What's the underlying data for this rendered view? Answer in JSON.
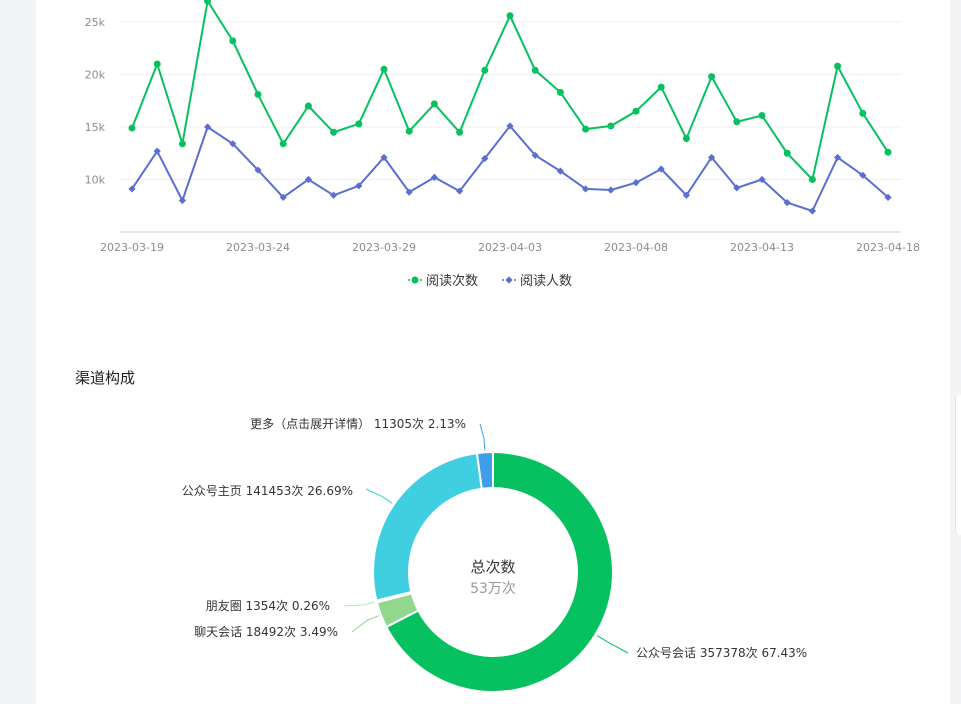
{
  "line_chart": {
    "type": "line",
    "x": [
      "2023-03-19",
      "2023-03-20",
      "2023-03-21",
      "2023-03-22",
      "2023-03-23",
      "2023-03-24",
      "2023-03-25",
      "2023-03-26",
      "2023-03-27",
      "2023-03-28",
      "2023-03-29",
      "2023-03-30",
      "2023-03-31",
      "2023-04-01",
      "2023-04-02",
      "2023-04-03",
      "2023-04-04",
      "2023-04-05",
      "2023-04-06",
      "2023-04-07",
      "2023-04-08",
      "2023-04-09",
      "2023-04-10",
      "2023-04-11",
      "2023-04-12",
      "2023-04-13",
      "2023-04-14",
      "2023-04-15",
      "2023-04-16",
      "2023-04-17",
      "2023-04-18"
    ],
    "x_tick_labels": [
      "2023-03-19",
      "2023-03-24",
      "2023-03-29",
      "2023-04-03",
      "2023-04-08",
      "2023-04-13",
      "2023-04-18"
    ],
    "y_tick_labels": [
      "10k",
      "15k",
      "20k",
      "25k"
    ],
    "y_ticks": [
      10000,
      15000,
      20000,
      25000
    ],
    "series": [
      {
        "name": "阅读次数",
        "color": "#07c160",
        "marker": "circle",
        "values": [
          14900,
          21000,
          13400,
          27000,
          23200,
          18100,
          13400,
          17000,
          14500,
          15300,
          20500,
          14600,
          17200,
          14500,
          20400,
          25600,
          20400,
          18300,
          14800,
          15100,
          16500,
          18800,
          13900,
          19800,
          15500,
          16100,
          12500,
          10000,
          20800,
          16300,
          12600
        ]
      },
      {
        "name": "阅读人数",
        "color": "#5b6fd1",
        "marker": "diamond",
        "values": [
          9100,
          12700,
          8000,
          15000,
          13400,
          10900,
          8300,
          10000,
          8500,
          9400,
          12100,
          8800,
          10200,
          8900,
          12000,
          15100,
          12300,
          10800,
          9100,
          9000,
          9700,
          11000,
          8500,
          12100,
          9200,
          10000,
          7800,
          7000,
          12100,
          10400,
          8300
        ]
      }
    ],
    "ylim": [
      8000,
      27000
    ],
    "grid": true,
    "legend_position": "bottom-center"
  },
  "pie_section": {
    "title": "渠道构成"
  },
  "chart_data": {
    "type": "pie",
    "style": "donut",
    "center_title": "总次数",
    "center_value": "53万次",
    "slices": [
      {
        "name": "公众号会话",
        "count": 357378,
        "percent": 67.43,
        "color": "#07c160",
        "label": "公众号会话 357378次 67.43%"
      },
      {
        "name": "聊天会话",
        "count": 18492,
        "percent": 3.49,
        "color": "#91d78e",
        "label": "聊天会话 18492次 3.49%"
      },
      {
        "name": "朋友圈",
        "count": 1354,
        "percent": 0.26,
        "color": "#c8edc6",
        "label": "朋友圈 1354次 0.26%"
      },
      {
        "name": "公众号主页",
        "count": 141453,
        "percent": 26.69,
        "color": "#3fcfe0",
        "label": "公众号主页 141453次 26.69%"
      },
      {
        "name": "更多（点击展开详情）",
        "count": 11305,
        "percent": 2.13,
        "color": "#3f9ee8",
        "label": "更多（点击展开详情） 11305次 2.13%"
      }
    ]
  }
}
